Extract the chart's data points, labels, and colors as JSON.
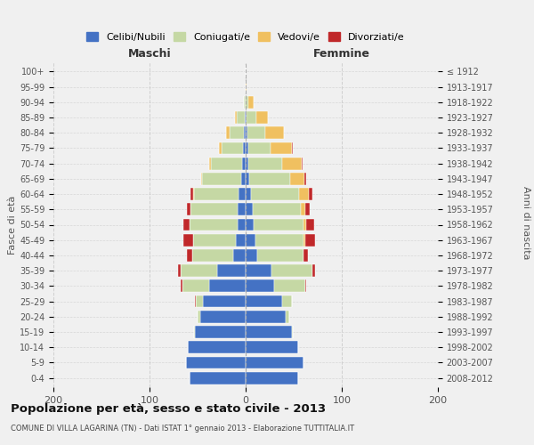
{
  "age_groups": [
    "0-4",
    "5-9",
    "10-14",
    "15-19",
    "20-24",
    "25-29",
    "30-34",
    "35-39",
    "40-44",
    "45-49",
    "50-54",
    "55-59",
    "60-64",
    "65-69",
    "70-74",
    "75-79",
    "80-84",
    "85-89",
    "90-94",
    "95-99",
    "100+"
  ],
  "birth_years": [
    "2008-2012",
    "2003-2007",
    "1998-2002",
    "1993-1997",
    "1988-1992",
    "1983-1987",
    "1978-1982",
    "1973-1977",
    "1968-1972",
    "1963-1967",
    "1958-1962",
    "1953-1957",
    "1948-1952",
    "1943-1947",
    "1938-1942",
    "1933-1937",
    "1928-1932",
    "1923-1927",
    "1918-1922",
    "1913-1917",
    "≤ 1912"
  ],
  "maschi": {
    "celibi": [
      58,
      62,
      60,
      53,
      47,
      44,
      38,
      30,
      13,
      10,
      8,
      8,
      7,
      5,
      4,
      3,
      2,
      1,
      0,
      0,
      0
    ],
    "coniugati": [
      0,
      0,
      0,
      1,
      3,
      8,
      28,
      38,
      43,
      45,
      50,
      49,
      47,
      40,
      32,
      22,
      15,
      8,
      2,
      0,
      0
    ],
    "vedovi": [
      0,
      0,
      0,
      0,
      0,
      0,
      0,
      0,
      0,
      0,
      0,
      0,
      1,
      1,
      2,
      3,
      3,
      2,
      0,
      0,
      0
    ],
    "divorziati": [
      0,
      0,
      0,
      0,
      0,
      1,
      2,
      2,
      5,
      10,
      7,
      4,
      2,
      0,
      0,
      0,
      0,
      0,
      0,
      0,
      0
    ]
  },
  "femmine": {
    "nubili": [
      55,
      60,
      55,
      48,
      42,
      38,
      30,
      27,
      12,
      10,
      8,
      7,
      6,
      4,
      3,
      3,
      2,
      1,
      0,
      0,
      0
    ],
    "coniugate": [
      0,
      0,
      0,
      1,
      3,
      10,
      32,
      42,
      48,
      50,
      52,
      50,
      50,
      42,
      35,
      23,
      18,
      10,
      3,
      0,
      0
    ],
    "vedove": [
      0,
      0,
      0,
      0,
      0,
      0,
      0,
      0,
      0,
      2,
      3,
      5,
      10,
      15,
      20,
      22,
      20,
      12,
      5,
      1,
      0
    ],
    "divorziate": [
      0,
      0,
      0,
      0,
      0,
      0,
      1,
      3,
      5,
      10,
      8,
      5,
      3,
      2,
      1,
      1,
      0,
      0,
      0,
      0,
      0
    ]
  },
  "colors": {
    "celibi_nubili": "#4472C4",
    "coniugati": "#C5D8A4",
    "vedovi": "#F0C060",
    "divorziati": "#C0282A"
  },
  "xlim": 200,
  "title": "Popolazione per età, sesso e stato civile - 2013",
  "subtitle": "COMUNE DI VILLA LAGARINA (TN) - Dati ISTAT 1° gennaio 2013 - Elaborazione TUTTITALIA.IT",
  "ylabel_left": "Fasce di età",
  "ylabel_right": "Anni di nascita",
  "xlabel_left": "Maschi",
  "xlabel_right": "Femmine",
  "bg_color": "#f0f0f0",
  "grid_color": "#cccccc"
}
